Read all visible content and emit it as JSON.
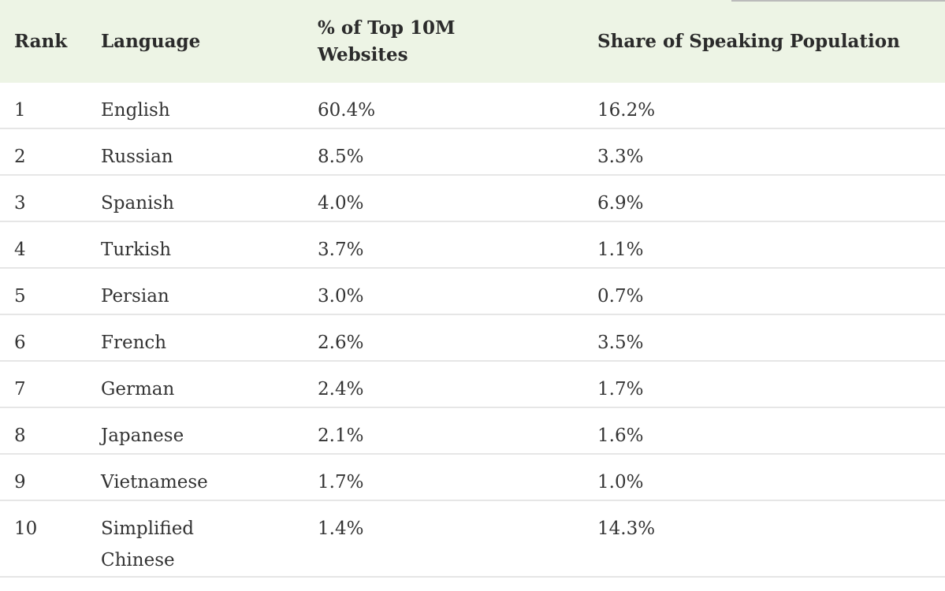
{
  "table": {
    "columns": [
      "Rank",
      "Language",
      "% of Top 10M Websites",
      "Share of Speaking Population"
    ],
    "rows": [
      [
        "1",
        "English",
        "60.4%",
        "16.2%"
      ],
      [
        "2",
        "Russian",
        "8.5%",
        "3.3%"
      ],
      [
        "3",
        "Spanish",
        "4.0%",
        "6.9%"
      ],
      [
        "4",
        "Turkish",
        "3.7%",
        "1.1%"
      ],
      [
        "5",
        "Persian",
        "3.0%",
        "0.7%"
      ],
      [
        "6",
        "French",
        "2.6%",
        "3.5%"
      ],
      [
        "7",
        "German",
        "2.4%",
        "1.7%"
      ],
      [
        "8",
        "Japanese",
        "2.1%",
        "1.6%"
      ],
      [
        "9",
        "Vietnamese",
        "1.7%",
        "1.0%"
      ],
      [
        "10",
        "Simplified Chinese",
        "1.4%",
        "14.3%"
      ]
    ]
  }
}
